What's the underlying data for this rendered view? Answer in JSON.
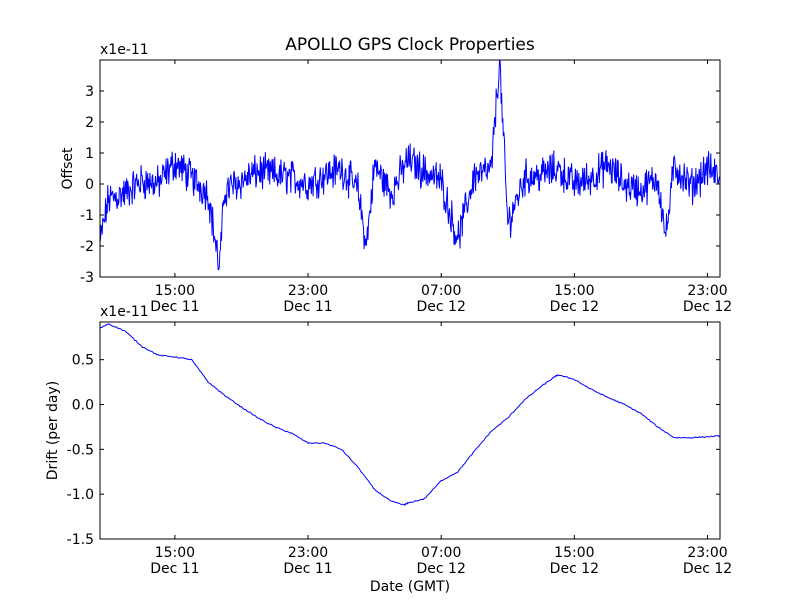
{
  "figure": {
    "title": "APOLLO GPS Clock Properties",
    "xlabel": "Date (GMT)"
  },
  "colors": {
    "series": "#0000ff",
    "axes": "#000000",
    "background": "#ffffff"
  },
  "chart_data": [
    {
      "type": "line",
      "title": "APOLLO GPS Clock Properties",
      "ylabel": "Offset",
      "xlabel": "",
      "y_multiplier": "x1e-11",
      "ylim": [
        -3,
        4
      ],
      "y_ticks": [
        -3,
        -2,
        -1,
        0,
        1,
        2,
        3
      ],
      "y_tick_labels": [
        "-3",
        "-2",
        "-1",
        "0",
        "1",
        "2",
        "3"
      ],
      "x_range": [
        "Dec 11 10:30",
        "Dec 12 23:45"
      ],
      "x_tick_labels": [
        {
          "time": "15:00",
          "date": "Dec 11"
        },
        {
          "time": "23:00",
          "date": "Dec 11"
        },
        {
          "time": "07:00",
          "date": "Dec 12"
        },
        {
          "time": "15:00",
          "date": "Dec 12"
        },
        {
          "time": "23:00",
          "date": "Dec 12"
        }
      ],
      "series": [
        {
          "x": [
            "Dec 11 10:30",
            "Dec 11 11:00",
            "Dec 11 12:00",
            "Dec 11 13:00",
            "Dec 11 14:00",
            "Dec 11 15:00",
            "Dec 11 16:00",
            "Dec 11 17:00",
            "Dec 11 17:40",
            "Dec 11 18:00",
            "Dec 11 19:00",
            "Dec 11 20:00",
            "Dec 11 21:00",
            "Dec 11 22:00",
            "Dec 11 23:00",
            "Dec 12 00:00",
            "Dec 12 01:00",
            "Dec 12 02:00",
            "Dec 12 02:30",
            "Dec 12 03:00",
            "Dec 12 04:00",
            "Dec 12 05:00",
            "Dec 12 06:00",
            "Dec 12 07:00",
            "Dec 12 08:00",
            "Dec 12 09:00",
            "Dec 12 10:00",
            "Dec 12 10:30",
            "Dec 12 11:00",
            "Dec 12 12:00",
            "Dec 12 13:00",
            "Dec 12 14:00",
            "Dec 12 15:00",
            "Dec 12 16:00",
            "Dec 12 17:00",
            "Dec 12 18:00",
            "Dec 12 19:00",
            "Dec 12 20:00",
            "Dec 12 20:30",
            "Dec 12 21:00",
            "Dec 12 22:00",
            "Dec 12 23:00",
            "Dec 12 23:45"
          ],
          "y": [
            -1.9,
            -0.5,
            -0.3,
            0.1,
            0.0,
            0.7,
            0.2,
            -0.3,
            -2.7,
            -0.2,
            0.1,
            0.4,
            0.3,
            0.2,
            0.0,
            0.3,
            0.5,
            -0.2,
            -2.0,
            0.6,
            -0.3,
            0.8,
            0.4,
            0.1,
            -1.8,
            0.3,
            0.4,
            4.0,
            -1.3,
            0.2,
            0.3,
            0.5,
            0.0,
            0.2,
            0.6,
            0.0,
            -0.2,
            0.2,
            -1.7,
            0.6,
            -0.1,
            0.5,
            0.2
          ]
        }
      ]
    },
    {
      "type": "line",
      "title": "",
      "ylabel": "Drift (per day)",
      "xlabel": "Date (GMT)",
      "y_multiplier": "x1e-11",
      "ylim": [
        -1.5,
        0.92
      ],
      "y_ticks": [
        -1.5,
        -1.0,
        -0.5,
        0.0,
        0.5
      ],
      "y_tick_labels": [
        "-1.5",
        "-1.0",
        "-0.5",
        "0.0",
        "0.5"
      ],
      "x_range": [
        "Dec 11 10:30",
        "Dec 12 23:45"
      ],
      "x_tick_labels": [
        {
          "time": "15:00",
          "date": "Dec 11"
        },
        {
          "time": "23:00",
          "date": "Dec 11"
        },
        {
          "time": "07:00",
          "date": "Dec 12"
        },
        {
          "time": "15:00",
          "date": "Dec 12"
        },
        {
          "time": "23:00",
          "date": "Dec 12"
        }
      ],
      "series": [
        {
          "x": [
            "Dec 11 10:30",
            "Dec 11 11:00",
            "Dec 11 12:00",
            "Dec 11 13:00",
            "Dec 11 14:00",
            "Dec 11 15:00",
            "Dec 11 16:00",
            "Dec 11 17:00",
            "Dec 11 18:00",
            "Dec 11 19:00",
            "Dec 11 20:00",
            "Dec 11 21:00",
            "Dec 11 22:00",
            "Dec 11 23:00",
            "Dec 12 00:00",
            "Dec 12 01:00",
            "Dec 12 02:00",
            "Dec 12 03:00",
            "Dec 12 04:00",
            "Dec 12 04:45",
            "Dec 12 05:00",
            "Dec 12 06:00",
            "Dec 12 07:00",
            "Dec 12 08:00",
            "Dec 12 09:00",
            "Dec 12 10:00",
            "Dec 12 11:00",
            "Dec 12 12:00",
            "Dec 12 13:00",
            "Dec 12 13:45",
            "Dec 12 14:00",
            "Dec 12 15:00",
            "Dec 12 16:00",
            "Dec 12 17:00",
            "Dec 12 18:00",
            "Dec 12 19:00",
            "Dec 12 20:00",
            "Dec 12 21:00",
            "Dec 12 22:00",
            "Dec 12 23:00",
            "Dec 12 23:45"
          ],
          "y": [
            0.85,
            0.9,
            0.82,
            0.65,
            0.55,
            0.53,
            0.5,
            0.25,
            0.1,
            -0.03,
            -0.15,
            -0.25,
            -0.32,
            -0.43,
            -0.43,
            -0.5,
            -0.7,
            -0.95,
            -1.08,
            -1.12,
            -1.1,
            -1.05,
            -0.85,
            -0.75,
            -0.52,
            -0.3,
            -0.15,
            0.05,
            0.2,
            0.3,
            0.33,
            0.28,
            0.17,
            0.08,
            0.0,
            -0.1,
            -0.25,
            -0.37,
            -0.37,
            -0.36,
            -0.35
          ]
        }
      ]
    }
  ]
}
